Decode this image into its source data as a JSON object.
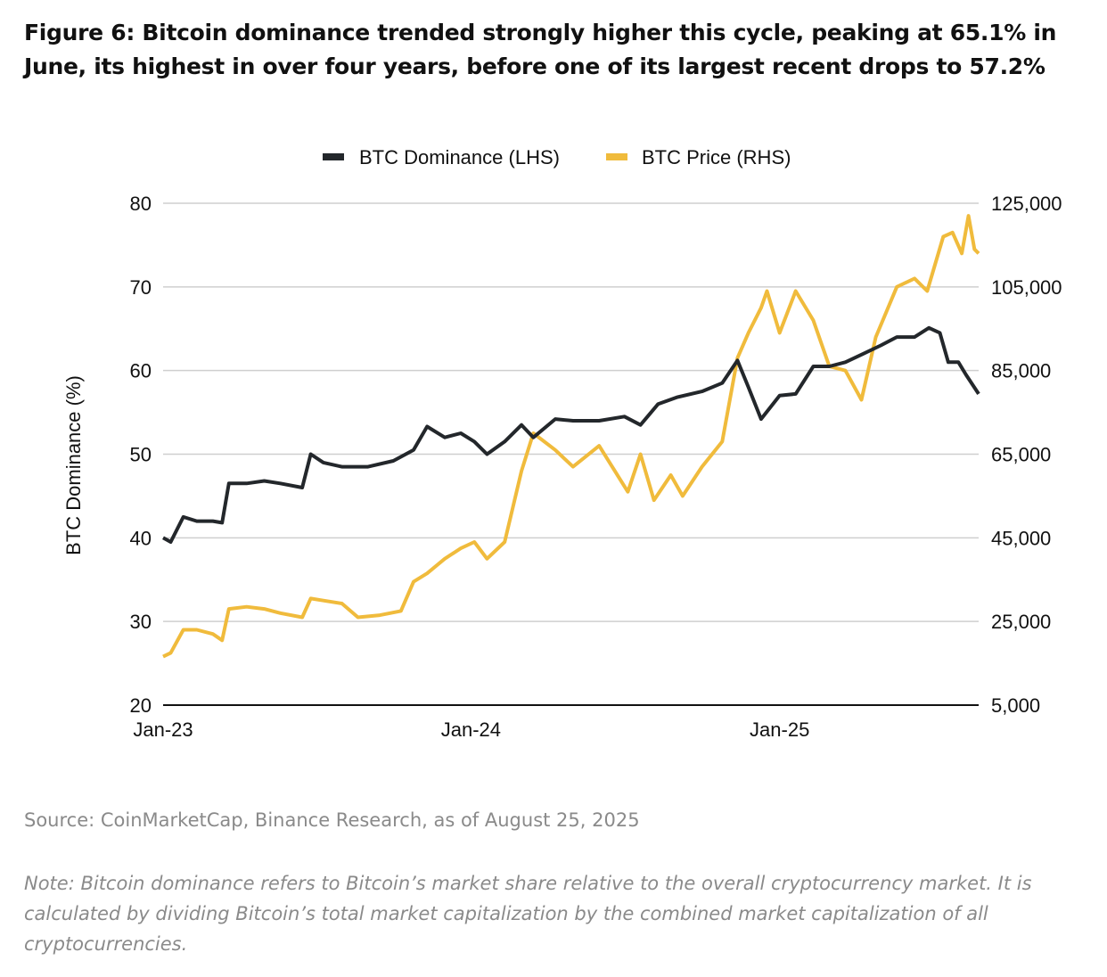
{
  "title": "Figure 6:  Bitcoin dominance trended strongly higher this cycle, peaking at 65.1% in June, its highest in over four years, before one of its largest recent drops to 57.2%",
  "source": "Source: CoinMarketCap, Binance Research, as of August 25, 2025",
  "note": "Note: Bitcoin dominance refers to Bitcoin’s market share relative to the overall cryptocurrency market. It is calculated by dividing Bitcoin’s total market capitalization by the combined market capitalization of all cryptocurrencies.",
  "chart_data": {
    "type": "line",
    "ylabel": "BTC Dominance (%)",
    "ylim": [
      20,
      80
    ],
    "y_ticks": [
      "80",
      "70",
      "60",
      "50",
      "40",
      "30",
      "20"
    ],
    "y2lim": [
      5000,
      125000
    ],
    "y2_ticks": [
      "125,000",
      "105,000",
      "85,000",
      "65,000",
      "45,000",
      "25,000",
      "5,000"
    ],
    "x_ticks": [
      {
        "label": "Jan-23",
        "date": "2023-01-01"
      },
      {
        "label": "Jan-24",
        "date": "2024-01-01"
      },
      {
        "label": "Jan-25",
        "date": "2025-01-01"
      }
    ],
    "xlim": [
      "2023-01-01",
      "2025-08-25"
    ],
    "grid": true,
    "legend": "top",
    "series": [
      {
        "name": "BTC Dominance (LHS)",
        "axis": "left",
        "color": "#23272b",
        "x": [
          "2023-01-01",
          "2023-01-10",
          "2023-01-25",
          "2023-02-10",
          "2023-03-01",
          "2023-03-12",
          "2023-03-20",
          "2023-04-10",
          "2023-05-01",
          "2023-05-20",
          "2023-06-15",
          "2023-06-25",
          "2023-07-10",
          "2023-08-01",
          "2023-09-01",
          "2023-10-01",
          "2023-10-25",
          "2023-11-10",
          "2023-12-01",
          "2023-12-20",
          "2024-01-05",
          "2024-01-20",
          "2024-02-10",
          "2024-03-01",
          "2024-03-15",
          "2024-04-10",
          "2024-05-01",
          "2024-06-01",
          "2024-07-01",
          "2024-07-20",
          "2024-08-10",
          "2024-09-01",
          "2024-10-01",
          "2024-10-25",
          "2024-11-12",
          "2024-11-25",
          "2024-12-10",
          "2025-01-01",
          "2025-01-20",
          "2025-02-10",
          "2025-03-01",
          "2025-03-20",
          "2025-04-10",
          "2025-05-01",
          "2025-05-20",
          "2025-06-10",
          "2025-06-27",
          "2025-07-10",
          "2025-07-20",
          "2025-08-01",
          "2025-08-10",
          "2025-08-25"
        ],
        "values": [
          40.0,
          39.5,
          42.5,
          42.0,
          42.0,
          41.8,
          46.5,
          46.5,
          46.8,
          46.5,
          46.0,
          50.0,
          49.0,
          48.5,
          48.5,
          49.2,
          50.5,
          53.3,
          52.0,
          52.5,
          51.5,
          50.0,
          51.5,
          53.5,
          52.0,
          54.2,
          54.0,
          54.0,
          54.5,
          53.5,
          56.0,
          56.8,
          57.5,
          58.5,
          61.2,
          58.0,
          54.2,
          57.0,
          57.2,
          60.5,
          60.5,
          61.0,
          62.0,
          63.0,
          64.0,
          64.0,
          65.1,
          64.5,
          61.0,
          61.0,
          59.5,
          57.2
        ]
      },
      {
        "name": "BTC Price (RHS)",
        "axis": "right",
        "color": "#f0bb3c",
        "x": [
          "2023-01-01",
          "2023-01-10",
          "2023-01-25",
          "2023-02-10",
          "2023-03-01",
          "2023-03-12",
          "2023-03-20",
          "2023-04-10",
          "2023-05-01",
          "2023-05-20",
          "2023-06-15",
          "2023-06-25",
          "2023-07-10",
          "2023-08-01",
          "2023-08-20",
          "2023-09-15",
          "2023-10-10",
          "2023-10-25",
          "2023-11-10",
          "2023-12-01",
          "2023-12-20",
          "2024-01-05",
          "2024-01-20",
          "2024-02-10",
          "2024-03-01",
          "2024-03-15",
          "2024-04-10",
          "2024-05-01",
          "2024-06-01",
          "2024-07-05",
          "2024-07-20",
          "2024-08-05",
          "2024-08-25",
          "2024-09-08",
          "2024-10-01",
          "2024-10-25",
          "2024-11-12",
          "2024-11-25",
          "2024-12-10",
          "2024-12-17",
          "2025-01-01",
          "2025-01-20",
          "2025-02-10",
          "2025-03-01",
          "2025-03-20",
          "2025-04-08",
          "2025-04-25",
          "2025-05-20",
          "2025-06-10",
          "2025-06-25",
          "2025-07-14",
          "2025-07-25",
          "2025-08-05",
          "2025-08-13",
          "2025-08-20",
          "2025-08-25"
        ],
        "values": [
          16600,
          17500,
          23000,
          23000,
          22000,
          20500,
          28000,
          28500,
          28000,
          27000,
          26000,
          30500,
          30000,
          29300,
          26000,
          26500,
          27500,
          34500,
          36500,
          40000,
          42500,
          44000,
          40000,
          44000,
          61000,
          70000,
          66000,
          62000,
          67000,
          56000,
          65000,
          54000,
          60000,
          55000,
          62000,
          68000,
          88000,
          94000,
          100000,
          104000,
          94000,
          104000,
          97000,
          86000,
          85000,
          78000,
          93000,
          105000,
          107000,
          104000,
          117000,
          118000,
          113000,
          122000,
          114000,
          113000
        ]
      }
    ]
  }
}
